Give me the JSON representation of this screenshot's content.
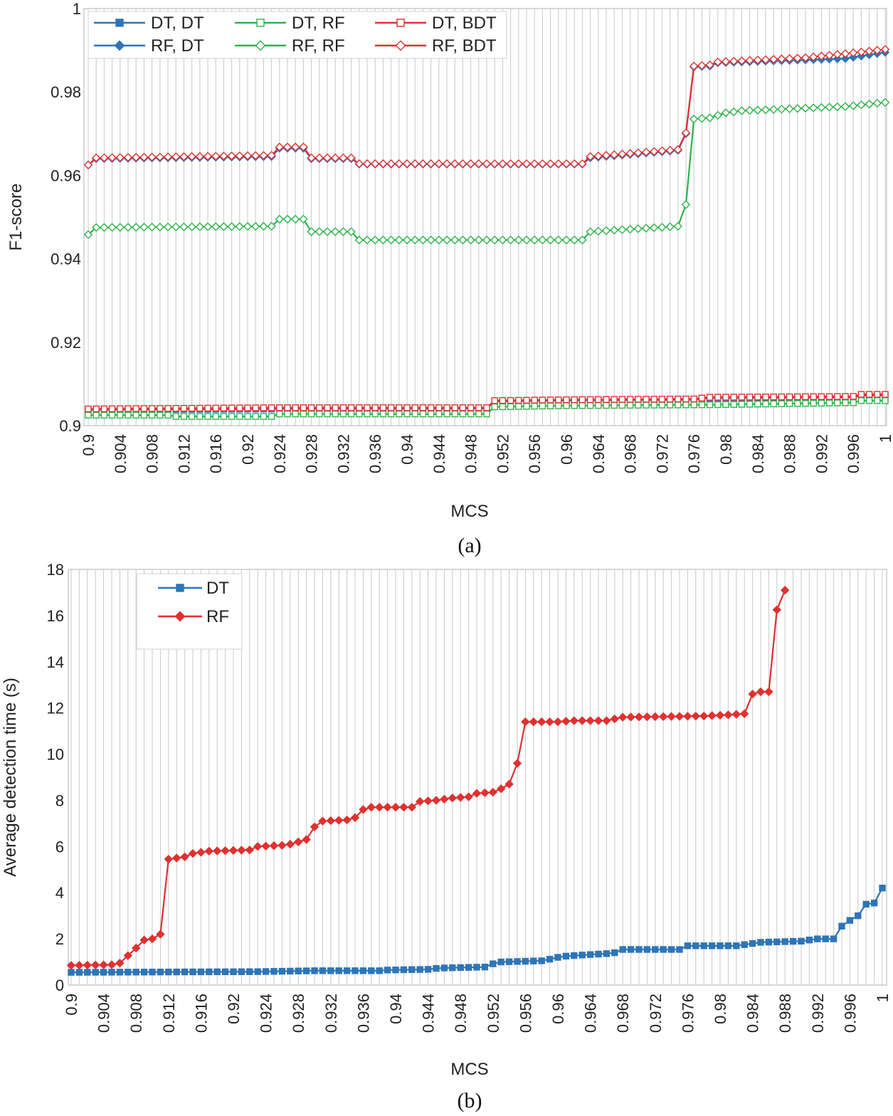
{
  "chart_data": [
    {
      "type": "line",
      "caption": "(a)",
      "xlabel": "MCS",
      "ylabel": "F1-score",
      "ylim": [
        0.9,
        1.0
      ],
      "yticks": [
        "0.9",
        "0.92",
        "0.94",
        "0.96",
        "0.98",
        "1"
      ],
      "xticks": [
        "0.9",
        "0.904",
        "0.908",
        "0.912",
        "0.916",
        "0.92",
        "0.924",
        "0.928",
        "0.932",
        "0.936",
        "0.94",
        "0.944",
        "0.948",
        "0.952",
        "0.956",
        "0.96",
        "0.964",
        "0.968",
        "0.972",
        "0.976",
        "0.98",
        "0.984",
        "0.988",
        "0.992",
        "0.996",
        "1"
      ],
      "x_range": [
        0.9,
        1.0
      ],
      "grid": "vertical",
      "legend_position": "top-left",
      "legend_columns": 3,
      "series": [
        {
          "name": "DT, DT",
          "color": "#2e75b6",
          "marker": "filled-square",
          "points": [
            [
              0.9,
              0.9038
            ],
            [
              0.924,
              0.904
            ],
            [
              0.95,
              0.9041
            ],
            [
              0.951,
              0.9058
            ],
            [
              0.96,
              0.906
            ],
            [
              0.976,
              0.9062
            ],
            [
              0.978,
              0.9066
            ],
            [
              0.996,
              0.9068
            ],
            [
              0.997,
              0.9072
            ],
            [
              1.0,
              0.9072
            ]
          ]
        },
        {
          "name": "DT, RF",
          "color": "#2eb24a",
          "marker": "hollow-square",
          "points": [
            [
              0.9,
              0.9025
            ],
            [
              0.91,
              0.9025
            ],
            [
              0.911,
              0.9022
            ],
            [
              0.923,
              0.9022
            ],
            [
              0.924,
              0.9028
            ],
            [
              0.95,
              0.9028
            ],
            [
              0.951,
              0.9045
            ],
            [
              0.96,
              0.9048
            ],
            [
              0.978,
              0.905
            ],
            [
              0.996,
              0.9055
            ],
            [
              0.997,
              0.906
            ],
            [
              1.0,
              0.906
            ]
          ]
        },
        {
          "name": "DT, BDT",
          "color": "#e03030",
          "marker": "hollow-square",
          "points": [
            [
              0.9,
              0.904
            ],
            [
              0.924,
              0.9043
            ],
            [
              0.95,
              0.9043
            ],
            [
              0.951,
              0.906
            ],
            [
              0.96,
              0.9062
            ],
            [
              0.976,
              0.9064
            ],
            [
              0.978,
              0.9068
            ],
            [
              0.996,
              0.907
            ],
            [
              0.997,
              0.9075
            ],
            [
              1.0,
              0.9075
            ]
          ]
        },
        {
          "name": "RF, DT",
          "color": "#2e75b6",
          "marker": "filled-diamond",
          "points": [
            [
              0.9,
              0.9625
            ],
            [
              0.901,
              0.964
            ],
            [
              0.923,
              0.9645
            ],
            [
              0.924,
              0.9665
            ],
            [
              0.927,
              0.9665
            ],
            [
              0.928,
              0.964
            ],
            [
              0.933,
              0.964
            ],
            [
              0.934,
              0.9627
            ],
            [
              0.962,
              0.9627
            ],
            [
              0.963,
              0.9642
            ],
            [
              0.974,
              0.966
            ],
            [
              0.975,
              0.97
            ],
            [
              0.976,
              0.986
            ],
            [
              0.978,
              0.9862
            ],
            [
              0.979,
              0.987
            ],
            [
              0.995,
              0.988
            ],
            [
              1.0,
              0.9895
            ]
          ]
        },
        {
          "name": "RF, RF",
          "color": "#2eb24a",
          "marker": "hollow-diamond",
          "points": [
            [
              0.9,
              0.9458
            ],
            [
              0.901,
              0.9475
            ],
            [
              0.923,
              0.9478
            ],
            [
              0.924,
              0.9495
            ],
            [
              0.927,
              0.9495
            ],
            [
              0.928,
              0.9465
            ],
            [
              0.933,
              0.9465
            ],
            [
              0.934,
              0.9445
            ],
            [
              0.962,
              0.9445
            ],
            [
              0.963,
              0.9465
            ],
            [
              0.974,
              0.9478
            ],
            [
              0.975,
              0.953
            ],
            [
              0.976,
              0.9735
            ],
            [
              0.978,
              0.9738
            ],
            [
              0.98,
              0.975
            ],
            [
              0.982,
              0.9755
            ],
            [
              0.995,
              0.9765
            ],
            [
              1.0,
              0.9775
            ]
          ]
        },
        {
          "name": "RF, BDT",
          "color": "#e03030",
          "marker": "hollow-diamond",
          "points": [
            [
              0.9,
              0.9625
            ],
            [
              0.901,
              0.9642
            ],
            [
              0.923,
              0.9648
            ],
            [
              0.924,
              0.9668
            ],
            [
              0.927,
              0.9668
            ],
            [
              0.928,
              0.9642
            ],
            [
              0.933,
              0.9642
            ],
            [
              0.934,
              0.9628
            ],
            [
              0.962,
              0.9628
            ],
            [
              0.963,
              0.9645
            ],
            [
              0.974,
              0.9662
            ],
            [
              0.975,
              0.9702
            ],
            [
              0.976,
              0.9862
            ],
            [
              0.978,
              0.9865
            ],
            [
              0.979,
              0.9872
            ],
            [
              0.99,
              0.9882
            ],
            [
              0.995,
              0.9892
            ],
            [
              1.0,
              0.9902
            ]
          ]
        }
      ]
    },
    {
      "type": "line",
      "caption": "(b)",
      "xlabel": "MCS",
      "ylabel": "Average detection time (s)",
      "ylim": [
        0,
        18
      ],
      "yticks": [
        "0",
        "2",
        "4",
        "6",
        "8",
        "10",
        "12",
        "14",
        "16",
        "18"
      ],
      "xticks": [
        "0.9",
        "0.904",
        "0.908",
        "0.912",
        "0.916",
        "0.92",
        "0.924",
        "0.928",
        "0.932",
        "0.936",
        "0.94",
        "0.944",
        "0.948",
        "0.952",
        "0.956",
        "0.96",
        "0.964",
        "0.968",
        "0.972",
        "0.976",
        "0.98",
        "0.984",
        "0.988",
        "0.992",
        "0.996",
        "1"
      ],
      "x_range": [
        0.9,
        1.0
      ],
      "grid": "vertical",
      "legend_position": "top-left",
      "legend_columns": 1,
      "series": [
        {
          "name": "DT",
          "color": "#2e75b6",
          "marker": "filled-square",
          "points": [
            [
              0.9,
              0.55
            ],
            [
              0.923,
              0.58
            ],
            [
              0.93,
              0.62
            ],
            [
              0.938,
              0.62
            ],
            [
              0.939,
              0.65
            ],
            [
              0.944,
              0.68
            ],
            [
              0.945,
              0.72
            ],
            [
              0.946,
              0.74
            ],
            [
              0.951,
              0.78
            ],
            [
              0.952,
              0.92
            ],
            [
              0.953,
              1.0
            ],
            [
              0.958,
              1.05
            ],
            [
              0.959,
              1.12
            ],
            [
              0.96,
              1.2
            ],
            [
              0.961,
              1.25
            ],
            [
              0.963,
              1.3
            ],
            [
              0.964,
              1.32
            ],
            [
              0.966,
              1.36
            ],
            [
              0.967,
              1.4
            ],
            [
              0.968,
              1.54
            ],
            [
              0.975,
              1.54
            ],
            [
              0.976,
              1.7
            ],
            [
              0.982,
              1.7
            ],
            [
              0.984,
              1.8
            ],
            [
              0.985,
              1.85
            ],
            [
              0.99,
              1.9
            ],
            [
              0.991,
              1.95
            ],
            [
              0.992,
              2.0
            ],
            [
              0.994,
              2.0
            ],
            [
              0.995,
              2.55
            ],
            [
              0.996,
              2.8
            ],
            [
              0.997,
              3.0
            ],
            [
              0.998,
              3.5
            ],
            [
              0.999,
              3.55
            ],
            [
              1.0,
              4.2
            ],
            [
              1.0,
              4.55
            ]
          ]
        },
        {
          "name": "RF",
          "color": "#e03030",
          "marker": "filled-diamond",
          "points": [
            [
              0.9,
              0.85
            ],
            [
              0.905,
              0.88
            ],
            [
              0.906,
              0.95
            ],
            [
              0.908,
              1.6
            ],
            [
              0.909,
              1.95
            ],
            [
              0.91,
              2.0
            ],
            [
              0.911,
              2.2
            ],
            [
              0.912,
              5.45
            ],
            [
              0.914,
              5.55
            ],
            [
              0.915,
              5.7
            ],
            [
              0.917,
              5.8
            ],
            [
              0.922,
              5.85
            ],
            [
              0.923,
              6.0
            ],
            [
              0.926,
              6.05
            ],
            [
              0.927,
              6.1
            ],
            [
              0.929,
              6.3
            ],
            [
              0.93,
              6.85
            ],
            [
              0.931,
              7.1
            ],
            [
              0.934,
              7.15
            ],
            [
              0.935,
              7.25
            ],
            [
              0.936,
              7.6
            ],
            [
              0.937,
              7.7
            ],
            [
              0.942,
              7.7
            ],
            [
              0.943,
              7.95
            ],
            [
              0.945,
              8.0
            ],
            [
              0.947,
              8.1
            ],
            [
              0.949,
              8.15
            ],
            [
              0.95,
              8.3
            ],
            [
              0.952,
              8.35
            ],
            [
              0.953,
              8.5
            ],
            [
              0.954,
              8.7
            ],
            [
              0.955,
              9.6
            ],
            [
              0.956,
              11.4
            ],
            [
              0.96,
              11.4
            ],
            [
              0.962,
              11.45
            ],
            [
              0.966,
              11.45
            ],
            [
              0.968,
              11.6
            ],
            [
              0.978,
              11.65
            ],
            [
              0.981,
              11.7
            ],
            [
              0.983,
              11.75
            ],
            [
              0.984,
              12.6
            ],
            [
              0.985,
              12.7
            ],
            [
              0.986,
              12.7
            ],
            [
              0.987,
              16.25
            ],
            [
              0.988,
              17.1
            ]
          ]
        }
      ]
    }
  ],
  "colors": {
    "dt": "#2e75b6",
    "rf_green": "#2eb24a",
    "bdt_red": "#e03030",
    "grid": "#c8c8c8",
    "frame": "#bfbfbf"
  }
}
